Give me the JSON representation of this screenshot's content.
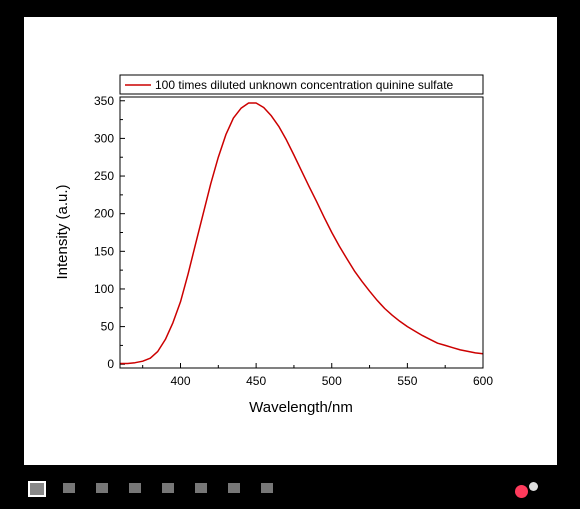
{
  "chart_data": {
    "type": "line",
    "xlabel": "Wavelength/nm",
    "ylabel": "Intensity (a.u.)",
    "xlim": [
      360,
      600
    ],
    "ylim": [
      -5,
      355
    ],
    "xticks": [
      400,
      450,
      500,
      550,
      600
    ],
    "yticks": [
      0,
      50,
      100,
      150,
      200,
      250,
      300,
      350
    ],
    "grid": false,
    "legend_position": "top",
    "series": [
      {
        "name": "100 times diluted unknown concentration quinine sulfate",
        "color": "#cc0000",
        "x": [
          360,
          365,
          370,
          375,
          380,
          385,
          390,
          395,
          400,
          405,
          410,
          415,
          420,
          425,
          430,
          435,
          440,
          445,
          450,
          455,
          460,
          465,
          470,
          475,
          480,
          485,
          490,
          495,
          500,
          505,
          510,
          515,
          520,
          525,
          530,
          535,
          540,
          545,
          550,
          555,
          560,
          565,
          570,
          575,
          580,
          585,
          590,
          595,
          600
        ],
        "y": [
          1,
          1,
          2,
          4,
          8,
          17,
          33,
          55,
          83,
          120,
          160,
          200,
          240,
          275,
          305,
          327,
          340,
          347,
          347,
          341,
          330,
          316,
          298,
          278,
          257,
          236,
          216,
          195,
          175,
          157,
          140,
          124,
          110,
          97,
          85,
          74,
          65,
          57,
          50,
          44,
          38,
          33,
          28,
          25,
          22,
          19,
          17,
          15,
          14
        ]
      }
    ]
  },
  "viewer": {
    "slide_count": 8,
    "active_slide": 1,
    "record_color": "#ff3b5c"
  }
}
